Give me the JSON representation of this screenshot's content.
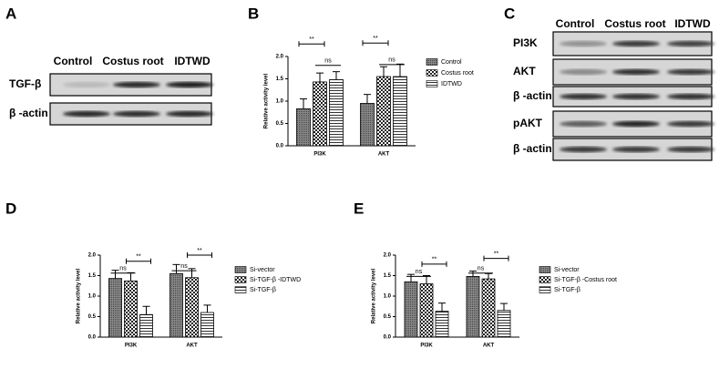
{
  "panel_labels": [
    "A",
    "B",
    "C",
    "D",
    "E"
  ],
  "blot_a": {
    "columns": [
      "Control",
      "Costus root",
      "IDTWD"
    ],
    "rows": [
      "TGF-β",
      "β -actin"
    ]
  },
  "blot_c": {
    "columns": [
      "Control",
      "Costus root",
      "IDTWD"
    ],
    "rows": [
      "PI3K",
      "AKT",
      "β -actin",
      "pAKT",
      "β -actin"
    ]
  },
  "chart_data": [
    {
      "type": "bar",
      "y_label": "Relative activity level",
      "categories": [
        "PI3K",
        "AKT"
      ],
      "ylim": [
        0,
        2
      ],
      "yticks": [
        {
          "value": 0,
          "label": "0.0"
        },
        {
          "value": 0.5,
          "label": "0.5"
        },
        {
          "value": 1,
          "label": "1.0"
        },
        {
          "value": 1.5,
          "label": "1.5"
        },
        {
          "value": 2,
          "label": "2.0"
        }
      ],
      "series": [
        {
          "name": "Control",
          "color": "#666666",
          "values": [
            0.83,
            0.95
          ],
          "errors": [
            0.22,
            0.2
          ]
        },
        {
          "name": "Costus root",
          "color": "#333333",
          "values": [
            1.43,
            1.55
          ],
          "errors": [
            0.2,
            0.22
          ]
        },
        {
          "name": "IDTWD",
          "color": "#ffffff",
          "values": [
            1.48,
            1.55
          ],
          "errors": [
            0.18,
            0.28
          ]
        }
      ],
      "annotations": [
        "**",
        "ns",
        "**",
        "ns"
      ]
    },
    {
      "type": "bar",
      "y_label": "Relative activity level",
      "categories": [
        "PI3K",
        "AKT"
      ],
      "ylim": [
        0,
        2
      ],
      "yticks": [
        {
          "value": 0,
          "label": "0.0"
        },
        {
          "value": 0.5,
          "label": "0.5"
        },
        {
          "value": 1,
          "label": "1.0"
        },
        {
          "value": 1.5,
          "label": "1.5"
        },
        {
          "value": 2,
          "label": "2.0"
        }
      ],
      "series": [
        {
          "name": "Si-vector",
          "color": "#666666",
          "values": [
            1.43,
            1.55
          ],
          "errors": [
            0.2,
            0.22
          ]
        },
        {
          "name": "Si-TGF-β -IDTWD",
          "color": "#333333",
          "values": [
            1.37,
            1.45
          ],
          "errors": [
            0.2,
            0.22
          ]
        },
        {
          "name": "Si-TGF-β",
          "color": "#ffffff",
          "values": [
            0.55,
            0.6
          ],
          "errors": [
            0.2,
            0.18
          ]
        }
      ],
      "annotations": [
        "ns",
        "**",
        "ns",
        "**"
      ]
    },
    {
      "type": "bar",
      "y_label": "Relative activity level",
      "categories": [
        "PI3K",
        "AKT"
      ],
      "ylim": [
        0,
        2
      ],
      "yticks": [
        {
          "value": 0,
          "label": "0.0"
        },
        {
          "value": 0.5,
          "label": "0.5"
        },
        {
          "value": 1,
          "label": "1.0"
        },
        {
          "value": 1.5,
          "label": "1.5"
        },
        {
          "value": 2,
          "label": "2.0"
        }
      ],
      "series": [
        {
          "name": "Si-vector",
          "color": "#666666",
          "values": [
            1.35,
            1.48
          ],
          "errors": [
            0.18,
            0.13
          ]
        },
        {
          "name": "Si-TGF-β -Costus root",
          "color": "#333333",
          "values": [
            1.3,
            1.42
          ],
          "errors": [
            0.2,
            0.13
          ]
        },
        {
          "name": "Si-TGF-β",
          "color": "#ffffff",
          "values": [
            0.63,
            0.65
          ],
          "errors": [
            0.2,
            0.17
          ]
        }
      ],
      "annotations": [
        "ns",
        "**",
        "ns",
        "**"
      ]
    }
  ]
}
